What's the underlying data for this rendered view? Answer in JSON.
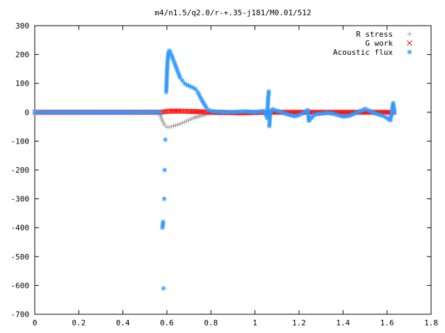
{
  "chart_data": {
    "type": "scatter",
    "title": "m4/n1.5/q2.0/r-+.35-j181/M0.01/512",
    "xlabel": "",
    "ylabel": "",
    "xlim": [
      0,
      1.8
    ],
    "ylim": [
      -700,
      300
    ],
    "x_ticks": [
      0,
      0.2,
      0.4,
      0.6,
      0.8,
      1,
      1.2,
      1.4,
      1.6,
      1.8
    ],
    "x_tick_labels": [
      "0",
      "0.2",
      "0.4",
      "0.6",
      "0.8",
      "1",
      "1.2",
      "1.4",
      "1.6",
      "1.8"
    ],
    "y_ticks": [
      300,
      200,
      100,
      0,
      -100,
      -200,
      -300,
      -400,
      -500,
      -600,
      -700
    ],
    "y_tick_labels": [
      "300",
      "200",
      "100",
      "0",
      "-100",
      "-200",
      "-300",
      "-400",
      "-500",
      "-600",
      "-700"
    ],
    "grid": false,
    "legend_position": "top-right",
    "series": [
      {
        "name": "R stress",
        "marker": "plus",
        "color": "#a0a0a0",
        "points": [
          [
            0,
            0
          ],
          [
            0.1,
            0
          ],
          [
            0.2,
            0
          ],
          [
            0.3,
            0
          ],
          [
            0.4,
            0
          ],
          [
            0.5,
            0
          ],
          [
            0.55,
            0
          ],
          [
            0.57,
            -10
          ],
          [
            0.58,
            -30
          ],
          [
            0.59,
            -45
          ],
          [
            0.6,
            -52
          ],
          [
            0.62,
            -50
          ],
          [
            0.64,
            -45
          ],
          [
            0.66,
            -40
          ],
          [
            0.68,
            -34
          ],
          [
            0.7,
            -27
          ],
          [
            0.72,
            -20
          ],
          [
            0.75,
            -13
          ],
          [
            0.78,
            -7
          ],
          [
            0.8,
            -2
          ],
          [
            0.85,
            0
          ],
          [
            0.9,
            0
          ],
          [
            1.0,
            0
          ],
          [
            1.1,
            0
          ],
          [
            1.2,
            0
          ],
          [
            1.3,
            0
          ],
          [
            1.4,
            0
          ],
          [
            1.5,
            0
          ],
          [
            1.6,
            0
          ],
          [
            1.63,
            0
          ]
        ]
      },
      {
        "name": "G work",
        "marker": "cross",
        "color": "#ff0000",
        "points": [
          [
            0,
            0
          ],
          [
            0.1,
            0
          ],
          [
            0.2,
            0
          ],
          [
            0.3,
            0
          ],
          [
            0.4,
            0
          ],
          [
            0.5,
            0
          ],
          [
            0.57,
            0
          ],
          [
            0.6,
            3
          ],
          [
            0.63,
            4
          ],
          [
            0.66,
            4
          ],
          [
            0.7,
            3
          ],
          [
            0.75,
            2
          ],
          [
            0.8,
            0
          ],
          [
            0.85,
            -1
          ],
          [
            0.9,
            -2
          ],
          [
            0.95,
            -2
          ],
          [
            1.0,
            -1
          ],
          [
            1.05,
            0
          ],
          [
            1.1,
            0
          ],
          [
            1.15,
            0
          ],
          [
            1.2,
            0
          ],
          [
            1.25,
            0
          ],
          [
            1.3,
            0
          ],
          [
            1.4,
            0
          ],
          [
            1.5,
            0
          ],
          [
            1.6,
            0
          ],
          [
            1.63,
            0
          ]
        ]
      },
      {
        "name": "Acoustic flux",
        "marker": "star",
        "color": "#3399ff",
        "points": [
          [
            0,
            0
          ],
          [
            0.05,
            0
          ],
          [
            0.1,
            0
          ],
          [
            0.15,
            0
          ],
          [
            0.2,
            0
          ],
          [
            0.25,
            0
          ],
          [
            0.3,
            0
          ],
          [
            0.35,
            0
          ],
          [
            0.4,
            0
          ],
          [
            0.45,
            0
          ],
          [
            0.5,
            0
          ],
          [
            0.55,
            0
          ],
          [
            0.57,
            0
          ],
          [
            0.58,
            -400
          ],
          [
            0.583,
            -380
          ],
          [
            0.585,
            -610
          ],
          [
            0.588,
            -300
          ],
          [
            0.59,
            -200
          ],
          [
            0.593,
            -95
          ],
          [
            0.597,
            70
          ],
          [
            0.6,
            130
          ],
          [
            0.603,
            175
          ],
          [
            0.607,
            205
          ],
          [
            0.61,
            213
          ],
          [
            0.615,
            210
          ],
          [
            0.62,
            200
          ],
          [
            0.63,
            180
          ],
          [
            0.64,
            160
          ],
          [
            0.65,
            140
          ],
          [
            0.66,
            120
          ],
          [
            0.67,
            110
          ],
          [
            0.68,
            100
          ],
          [
            0.69,
            95
          ],
          [
            0.7,
            92
          ],
          [
            0.71,
            88
          ],
          [
            0.72,
            85
          ],
          [
            0.73,
            80
          ],
          [
            0.74,
            70
          ],
          [
            0.75,
            55
          ],
          [
            0.76,
            40
          ],
          [
            0.77,
            28
          ],
          [
            0.78,
            15
          ],
          [
            0.79,
            8
          ],
          [
            0.8,
            4
          ],
          [
            0.82,
            2
          ],
          [
            0.85,
            1
          ],
          [
            0.88,
            0
          ],
          [
            0.9,
            0
          ],
          [
            0.93,
            2
          ],
          [
            0.96,
            3
          ],
          [
            0.98,
            1
          ],
          [
            1.0,
            0
          ],
          [
            1.02,
            2
          ],
          [
            1.04,
            4
          ],
          [
            1.05,
            -10
          ],
          [
            1.055,
            -20
          ],
          [
            1.06,
            50
          ],
          [
            1.063,
            72
          ],
          [
            1.065,
            -48
          ],
          [
            1.07,
            5
          ],
          [
            1.08,
            10
          ],
          [
            1.1,
            5
          ],
          [
            1.12,
            0
          ],
          [
            1.15,
            -8
          ],
          [
            1.18,
            -14
          ],
          [
            1.2,
            -10
          ],
          [
            1.22,
            -2
          ],
          [
            1.24,
            8
          ],
          [
            1.245,
            -30
          ],
          [
            1.25,
            -25
          ],
          [
            1.27,
            -8
          ],
          [
            1.3,
            -5
          ],
          [
            1.33,
            -2
          ],
          [
            1.36,
            -6
          ],
          [
            1.4,
            -15
          ],
          [
            1.43,
            -12
          ],
          [
            1.46,
            -2
          ],
          [
            1.49,
            8
          ],
          [
            1.5,
            12
          ],
          [
            1.52,
            5
          ],
          [
            1.55,
            -5
          ],
          [
            1.58,
            -12
          ],
          [
            1.6,
            -20
          ],
          [
            1.615,
            -28
          ],
          [
            1.62,
            -10
          ],
          [
            1.625,
            20
          ],
          [
            1.628,
            32
          ],
          [
            1.632,
            10
          ],
          [
            1.635,
            0
          ]
        ]
      }
    ]
  }
}
